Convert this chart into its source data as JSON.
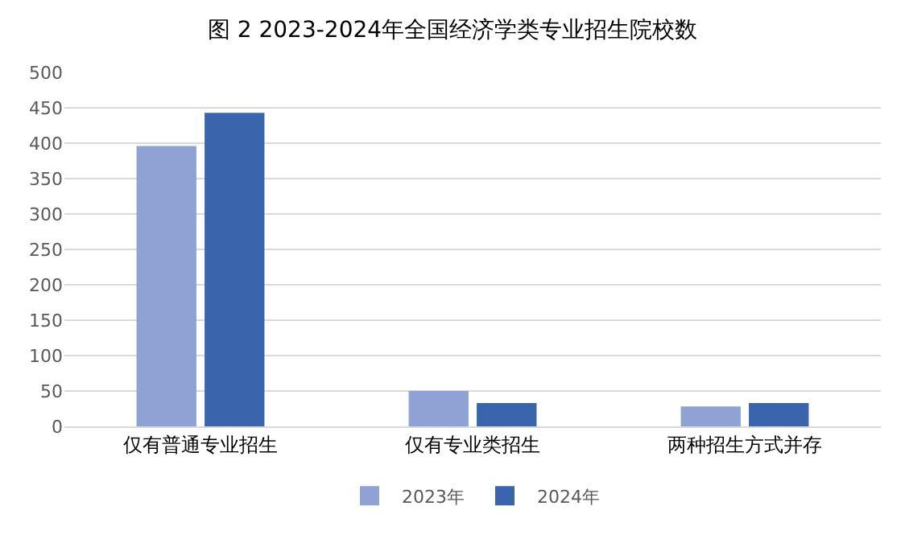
{
  "chart_data": {
    "type": "bar",
    "title": "图 2 2023-2024年全国经济学类专业招生院校数",
    "categories": [
      "仅有普通专业招生",
      "仅有专业类招生",
      "两种招生方式并存"
    ],
    "series": [
      {
        "name": "2023年",
        "color": "#8fa2d4",
        "values": [
          396,
          50,
          28
        ]
      },
      {
        "name": "2024年",
        "color": "#3a64ac",
        "values": [
          443,
          33,
          33
        ]
      }
    ],
    "ylim": [
      0,
      500
    ],
    "yticks": [
      0,
      50,
      100,
      150,
      200,
      250,
      300,
      350,
      400,
      450,
      500
    ],
    "grid": "y",
    "legend": "bottom"
  }
}
